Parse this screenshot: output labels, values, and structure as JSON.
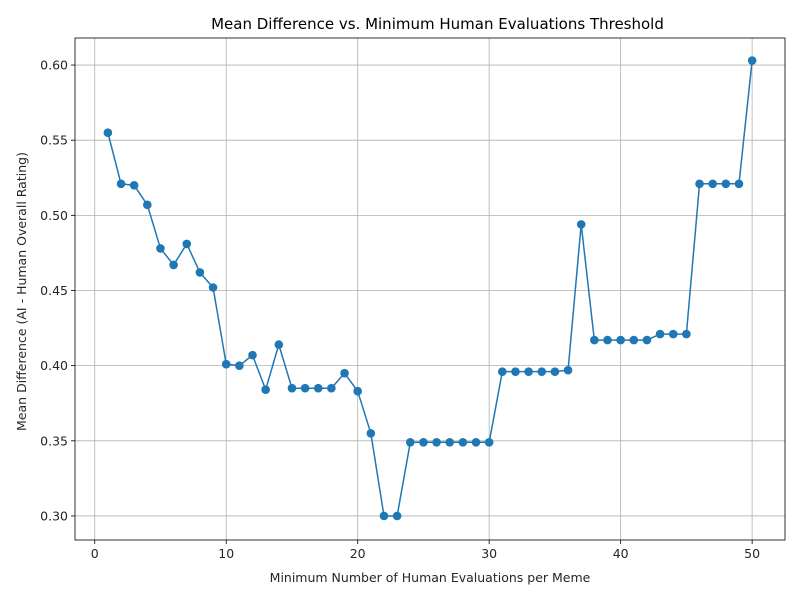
{
  "chart_data": {
    "type": "line",
    "title": "Mean Difference vs. Minimum Human Evaluations Threshold",
    "xlabel": "Minimum Number of Human Evaluations per Meme",
    "ylabel": "Mean Difference (AI - Human Overall Rating)",
    "xlim": [
      -1.5,
      52.5
    ],
    "ylim": [
      0.284,
      0.618
    ],
    "xticks": [
      0,
      10,
      20,
      30,
      40,
      50
    ],
    "xtick_labels": [
      "0",
      "10",
      "20",
      "30",
      "40",
      "50"
    ],
    "yticks": [
      0.3,
      0.35,
      0.4,
      0.45,
      0.5,
      0.55,
      0.6
    ],
    "ytick_labels": [
      "0.30",
      "0.35",
      "0.40",
      "0.45",
      "0.50",
      "0.55",
      "0.60"
    ],
    "grid": true,
    "marker": "circle",
    "colors": {
      "series": "#1f77b4",
      "grid": "#b0b0b0",
      "axis": "#000000"
    },
    "x": [
      1,
      2,
      3,
      4,
      5,
      6,
      7,
      8,
      9,
      10,
      11,
      12,
      13,
      14,
      15,
      16,
      17,
      18,
      19,
      20,
      21,
      22,
      23,
      24,
      25,
      26,
      27,
      28,
      29,
      30,
      31,
      32,
      33,
      34,
      35,
      36,
      37,
      38,
      39,
      40,
      41,
      42,
      43,
      44,
      45,
      46,
      47,
      48,
      49,
      50
    ],
    "y": [
      0.555,
      0.521,
      0.52,
      0.507,
      0.478,
      0.467,
      0.481,
      0.462,
      0.452,
      0.401,
      0.4,
      0.407,
      0.384,
      0.414,
      0.385,
      0.385,
      0.385,
      0.385,
      0.395,
      0.383,
      0.355,
      0.3,
      0.3,
      0.349,
      0.349,
      0.349,
      0.349,
      0.349,
      0.349,
      0.349,
      0.396,
      0.396,
      0.396,
      0.396,
      0.396,
      0.397,
      0.494,
      0.417,
      0.417,
      0.417,
      0.417,
      0.417,
      0.421,
      0.421,
      0.421,
      0.521,
      0.521,
      0.521,
      0.521,
      0.603
    ]
  }
}
